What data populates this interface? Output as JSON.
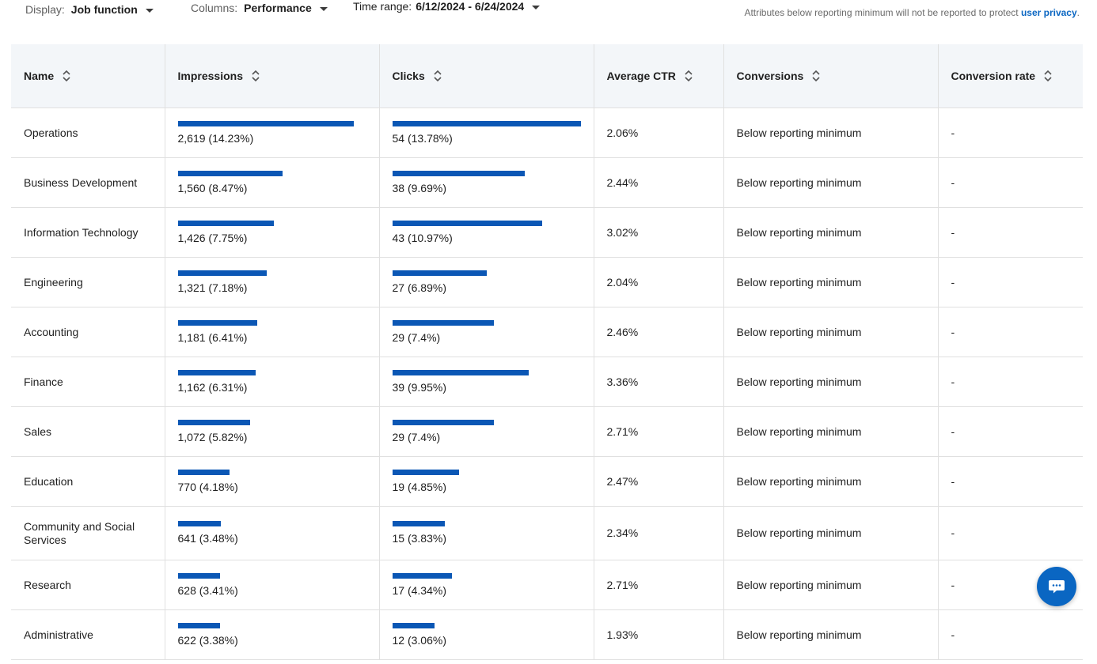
{
  "filters": {
    "display": {
      "label": "Display:",
      "value": "Job function"
    },
    "columns": {
      "label": "Columns:",
      "value": "Performance"
    },
    "time_range": {
      "label": "Time range:",
      "value": "6/12/2024 - 6/24/2024"
    }
  },
  "privacy_note": {
    "text": "Attributes below reporting minimum will not be reported to protect ",
    "link": "user privacy",
    "suffix": "."
  },
  "table": {
    "columns": [
      "Name",
      "Impressions",
      "Clicks",
      "Average CTR",
      "Conversions",
      "Conversion rate"
    ],
    "rows": [
      {
        "name": "Operations",
        "impressions": "2,619 (14.23%)",
        "impressions_pct": 14.23,
        "clicks": "54 (13.78%)",
        "clicks_pct": 13.78,
        "ctr": "2.06%",
        "conversions": "Below reporting minimum",
        "conversion_rate": "-"
      },
      {
        "name": "Business Development",
        "impressions": "1,560 (8.47%)",
        "impressions_pct": 8.47,
        "clicks": "38 (9.69%)",
        "clicks_pct": 9.69,
        "ctr": "2.44%",
        "conversions": "Below reporting minimum",
        "conversion_rate": "-"
      },
      {
        "name": "Information Technology",
        "impressions": "1,426 (7.75%)",
        "impressions_pct": 7.75,
        "clicks": "43 (10.97%)",
        "clicks_pct": 10.97,
        "ctr": "3.02%",
        "conversions": "Below reporting minimum",
        "conversion_rate": "-"
      },
      {
        "name": "Engineering",
        "impressions": "1,321 (7.18%)",
        "impressions_pct": 7.18,
        "clicks": "27 (6.89%)",
        "clicks_pct": 6.89,
        "ctr": "2.04%",
        "conversions": "Below reporting minimum",
        "conversion_rate": "-"
      },
      {
        "name": "Accounting",
        "impressions": "1,181 (6.41%)",
        "impressions_pct": 6.41,
        "clicks": "29 (7.4%)",
        "clicks_pct": 7.4,
        "ctr": "2.46%",
        "conversions": "Below reporting minimum",
        "conversion_rate": "-"
      },
      {
        "name": "Finance",
        "impressions": "1,162 (6.31%)",
        "impressions_pct": 6.31,
        "clicks": "39 (9.95%)",
        "clicks_pct": 9.95,
        "ctr": "3.36%",
        "conversions": "Below reporting minimum",
        "conversion_rate": "-"
      },
      {
        "name": "Sales",
        "impressions": "1,072 (5.82%)",
        "impressions_pct": 5.82,
        "clicks": "29 (7.4%)",
        "clicks_pct": 7.4,
        "ctr": "2.71%",
        "conversions": "Below reporting minimum",
        "conversion_rate": "-"
      },
      {
        "name": "Education",
        "impressions": "770 (4.18%)",
        "impressions_pct": 4.18,
        "clicks": "19 (4.85%)",
        "clicks_pct": 4.85,
        "ctr": "2.47%",
        "conversions": "Below reporting minimum",
        "conversion_rate": "-"
      },
      {
        "name": "Community and Social Services",
        "impressions": "641 (3.48%)",
        "impressions_pct": 3.48,
        "clicks": "15 (3.83%)",
        "clicks_pct": 3.83,
        "ctr": "2.34%",
        "conversions": "Below reporting minimum",
        "conversion_rate": "-"
      },
      {
        "name": "Research",
        "impressions": "628 (3.41%)",
        "impressions_pct": 3.41,
        "clicks": "17 (4.34%)",
        "clicks_pct": 4.34,
        "ctr": "2.71%",
        "conversions": "Below reporting minimum",
        "conversion_rate": "-"
      },
      {
        "name": "Administrative",
        "impressions": "622 (3.38%)",
        "impressions_pct": 3.38,
        "clicks": "12 (3.06%)",
        "clicks_pct": 3.06,
        "ctr": "1.93%",
        "conversions": "Below reporting minimum",
        "conversion_rate": "-"
      }
    ]
  },
  "colors": {
    "accent": "#0a66c2",
    "bar": "#0b57b5",
    "header_bg": "#f3f6f9"
  },
  "icons": {
    "sort": "sort-icon",
    "chat": "chat-bubble-icon"
  }
}
